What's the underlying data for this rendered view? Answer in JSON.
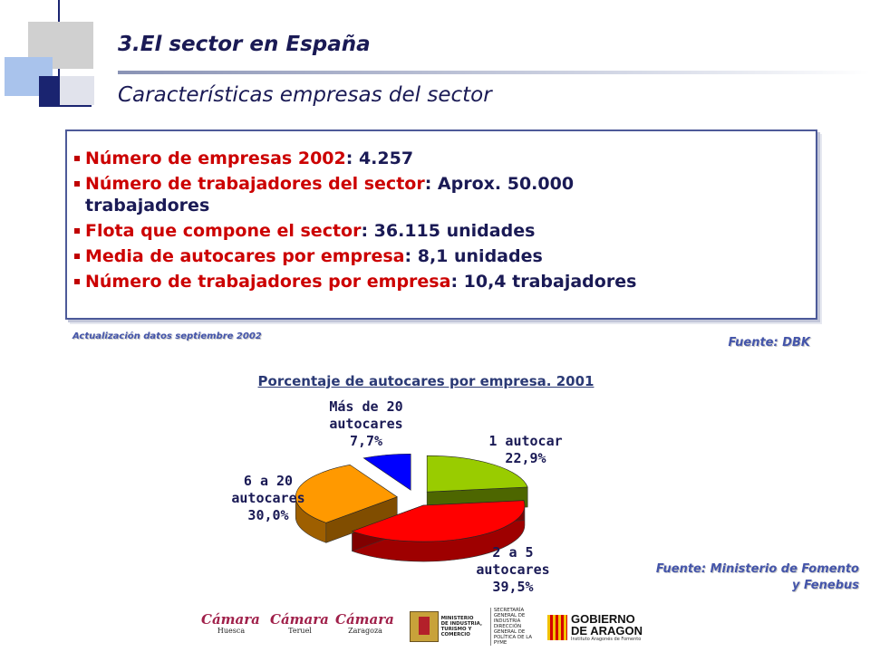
{
  "slide": {
    "title": "3.El sector en España",
    "subtitle": "Características empresas del sector"
  },
  "info_box": {
    "items": [
      {
        "label": "Número de empresas 2002",
        "value": ": 4.257"
      },
      {
        "label": "Número de trabajadores del sector",
        "value": ": Aprox. 50.000\ntrabajadores"
      },
      {
        "label": "Flota que compone el sector",
        "value": ": 36.115 unidades"
      },
      {
        "label": "Media de autocares por empresa",
        "value": ": 8,1 unidades"
      },
      {
        "label": "Número de trabajadores por empresa",
        "value": ": 10,4 trabajadores"
      }
    ]
  },
  "notes": {
    "update": "Actualización datos septiembre 2002",
    "source_dbk": "Fuente: DBK",
    "source_ministerio": "Fuente: Ministerio de Fomento\ny Fenebus"
  },
  "chart_data": {
    "type": "pie",
    "title": "Porcentaje de autocares por empresa. 2001",
    "slices": [
      {
        "label": "1 autocar",
        "value": 22.9,
        "text": "22,9%",
        "color": "#99cc00"
      },
      {
        "label": "2 a 5 autocares",
        "value": 39.5,
        "text": "39,5%",
        "color": "#ff0000"
      },
      {
        "label": "6 a 20 autocares",
        "value": 30.0,
        "text": "30,0%",
        "color": "#ff9900"
      },
      {
        "label": "Más de 20 autocares",
        "value": 7.7,
        "text": "7,7%",
        "color": "#0000ff"
      }
    ],
    "label_lines": [
      [
        "1 autocar",
        "22,9%"
      ],
      [
        "2 a 5",
        "autocares",
        "39,5%"
      ],
      [
        "6 a 20",
        "autocares",
        "30,0%"
      ],
      [
        "Más de 20",
        "autocares",
        "7,7%"
      ]
    ],
    "exploded": true,
    "style": "3d"
  },
  "logos": {
    "camara_1": {
      "name": "Cámara",
      "city": "Huesca"
    },
    "camara_2": {
      "name": "Cámara",
      "city": "Teruel"
    },
    "camara_3": {
      "name": "Cámara",
      "city": "Zaragoza"
    },
    "ministerio": {
      "text": "MINISTERIO\nDE INDUSTRIA,\nTURISMO Y\nCOMERCIO",
      "secretaria": "SECRETARÍA GENERAL DE\nINDUSTRIA\nDIRECCIÓN GENERAL DE\nPOLÍTICA DE LA PYME"
    },
    "gobierno": {
      "line1": "GOBIERNO",
      "line2": "DE ARAGON",
      "line3": "Instituto Aragonés de Fomento"
    }
  }
}
